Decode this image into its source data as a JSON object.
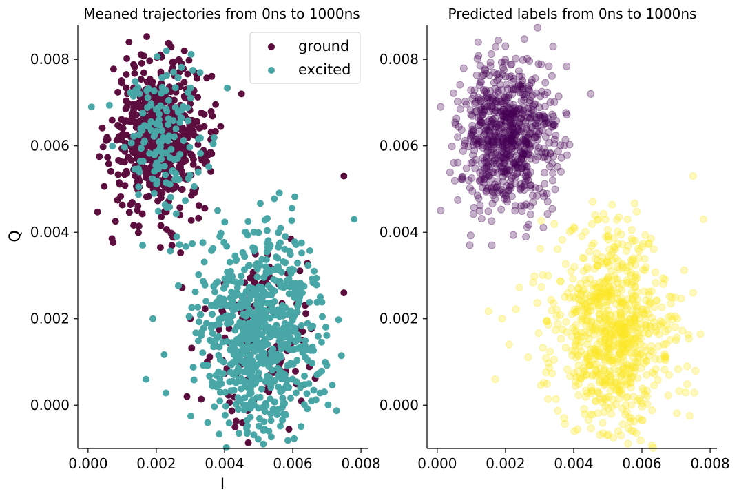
{
  "chart_data": [
    {
      "type": "scatter",
      "title": "Meaned trajectories from 0ns to 1000ns",
      "xlabel": "I",
      "ylabel": "Q",
      "xlim": [
        -0.0003,
        0.0082
      ],
      "ylim": [
        -0.001,
        0.0088
      ],
      "xticks": [
        "0.000",
        "0.002",
        "0.004",
        "0.006",
        "0.008"
      ],
      "yticks": [
        "0.000",
        "0.002",
        "0.004",
        "0.006",
        "0.008"
      ],
      "grid": false,
      "legend": {
        "placement": "top-right",
        "entries": [
          "ground",
          "excited"
        ]
      },
      "series": [
        {
          "name": "ground",
          "color": "#5c0e3e",
          "clusters": [
            {
              "center": [
                0.0021,
                0.0062
              ],
              "std": [
                0.0007,
                0.00085
              ],
              "n": 620
            },
            {
              "center": [
                0.0051,
                0.0017
              ],
              "std": [
                0.0008,
                0.0011
              ],
              "n": 140
            }
          ],
          "outliers": [
            [
              0.0012,
              0.0084
            ],
            [
              0.0045,
              0.0072
            ],
            [
              0.0075,
              0.0053
            ],
            [
              0.0075,
              0.0026
            ],
            [
              0.0029,
              0.0002
            ],
            [
              0.003,
              0.002
            ]
          ]
        },
        {
          "name": "excited",
          "color": "#48a6a6",
          "clusters": [
            {
              "center": [
                0.0051,
                0.0017
              ],
              "std": [
                0.0009,
                0.0012
              ],
              "n": 720
            },
            {
              "center": [
                0.0022,
                0.0062
              ],
              "std": [
                0.0006,
                0.0008
              ],
              "n": 140
            }
          ],
          "outliers": [
            [
              0.0001,
              0.0069
            ],
            [
              0.0019,
              0.002
            ],
            [
              0.0017,
              0.0006
            ],
            [
              0.0026,
              0.0039
            ],
            [
              0.0078,
              0.0043
            ],
            [
              0.0053,
              -0.0006
            ],
            [
              0.0016,
              0.0037
            ],
            [
              0.0023,
              0.0082
            ]
          ]
        }
      ]
    },
    {
      "type": "scatter",
      "title": "Predicted labels from 0ns to 1000ns",
      "xlabel": "",
      "ylabel": "",
      "xlim": [
        -0.0003,
        0.0082
      ],
      "ylim": [
        -0.001,
        0.0088
      ],
      "xticks": [
        "0.000",
        "0.002",
        "0.004",
        "0.006",
        "0.008"
      ],
      "yticks": [
        "0.000",
        "0.002",
        "0.004",
        "0.006",
        "0.008"
      ],
      "grid": false,
      "alpha": 0.3,
      "series": [
        {
          "color": "#440154",
          "clusters": [
            {
              "center": [
                0.0021,
                0.0062
              ],
              "std": [
                0.0007,
                0.00085
              ],
              "n": 760
            }
          ],
          "outliers": [
            [
              0.0012,
              0.0084
            ],
            [
              0.0045,
              0.0072
            ],
            [
              0.0001,
              0.0069
            ],
            [
              0.0016,
              0.0037
            ],
            [
              0.0026,
              0.0039
            ]
          ]
        },
        {
          "color": "#fde725",
          "clusters": [
            {
              "center": [
                0.0051,
                0.0017
              ],
              "std": [
                0.0009,
                0.0012
              ],
              "n": 860
            }
          ],
          "outliers": [
            [
              0.0075,
              0.0053
            ],
            [
              0.0078,
              0.0043
            ],
            [
              0.0053,
              -0.0006
            ],
            [
              0.0019,
              0.002
            ],
            [
              0.0017,
              0.0006
            ],
            [
              0.0075,
              0.0026
            ]
          ]
        }
      ]
    }
  ]
}
